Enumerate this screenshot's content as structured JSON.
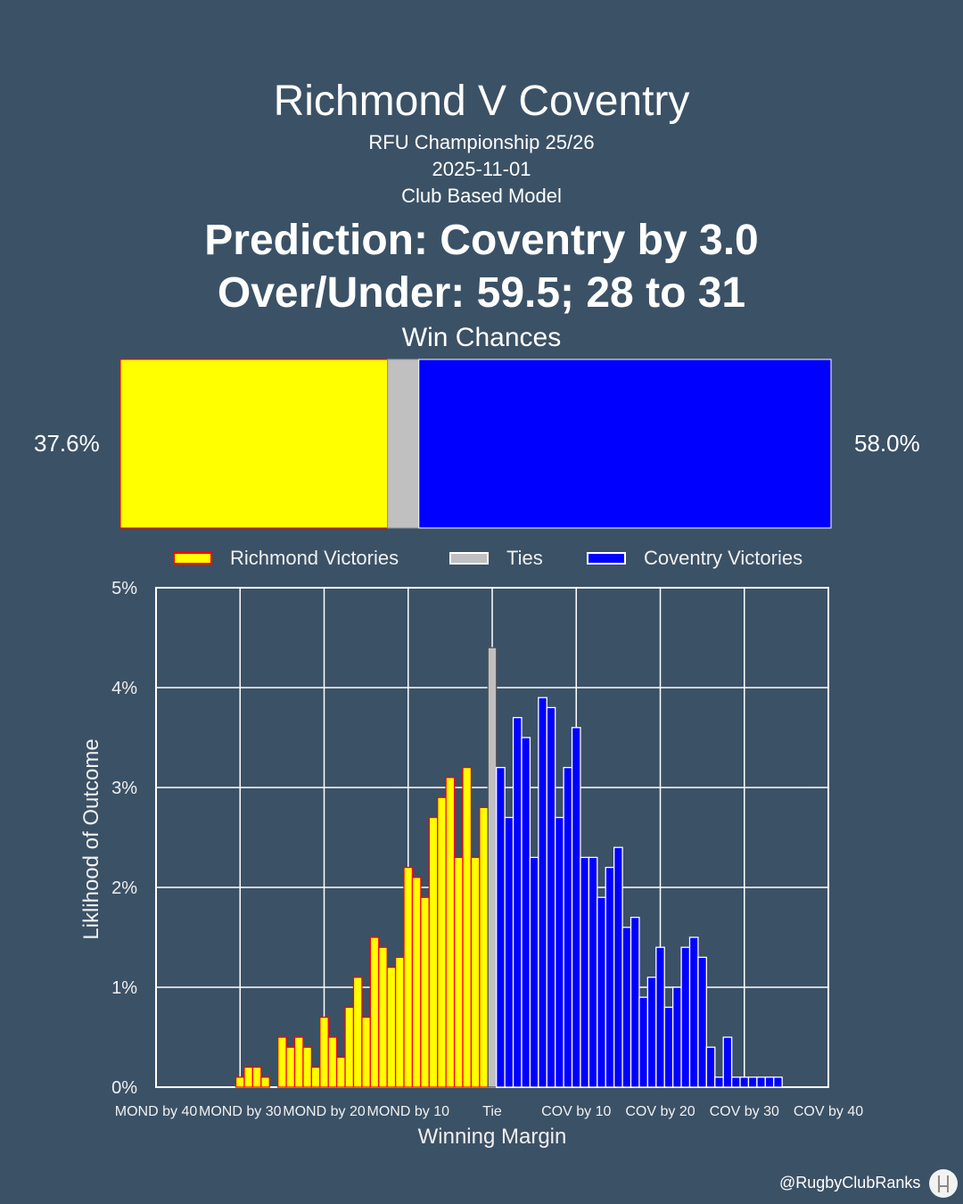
{
  "header": {
    "title": "Richmond V Coventry",
    "competition": "RFU Championship 25/26",
    "date": "2025-11-01",
    "model": "Club Based Model",
    "prediction": "Prediction: Coventry by 3.0",
    "over_under": "Over/Under: 59.5; 28 to 31"
  },
  "win_chances": {
    "title": "Win Chances",
    "home_pct": 37.6,
    "tie_pct": 4.4,
    "away_pct": 58.0,
    "home_label": "37.6%",
    "away_label": "58.0%"
  },
  "colors": {
    "background": "#3b5166",
    "home": "#ffff00",
    "home_edge": "#ff0000",
    "tie": "#c0c0c0",
    "away": "#0000ff",
    "away_edge": "#ffffff"
  },
  "legend": [
    {
      "label": "Richmond Victories",
      "color": "#ffff00",
      "edge": "#ff0000"
    },
    {
      "label": "Ties",
      "color": "#c0c0c0",
      "edge": "#ffffff"
    },
    {
      "label": "Coventry Victories",
      "color": "#0000ff",
      "edge": "#ffffff"
    }
  ],
  "chart_data": {
    "type": "bar",
    "xlabel": "Winning Margin",
    "ylabel": "Liklihood of Outcome",
    "xlim": [
      -40,
      40
    ],
    "ylim": [
      0,
      5
    ],
    "grid": true,
    "legend_position": "top",
    "xticks": [
      {
        "value": -40,
        "label": "MOND by 40"
      },
      {
        "value": -30,
        "label": "MOND by 30"
      },
      {
        "value": -20,
        "label": "MOND by 20"
      },
      {
        "value": -10,
        "label": "MOND by 10"
      },
      {
        "value": 0,
        "label": "Tie"
      },
      {
        "value": 10,
        "label": "COV by 10"
      },
      {
        "value": 20,
        "label": "COV by 20"
      },
      {
        "value": 30,
        "label": "COV by 30"
      },
      {
        "value": 40,
        "label": "COV by 40"
      }
    ],
    "yticks": [
      {
        "value": 0,
        "label": "0%"
      },
      {
        "value": 1,
        "label": "1%"
      },
      {
        "value": 2,
        "label": "2%"
      },
      {
        "value": 3,
        "label": "3%"
      },
      {
        "value": 4,
        "label": "4%"
      },
      {
        "value": 5,
        "label": "5%"
      }
    ],
    "series": [
      {
        "name": "Richmond Victories",
        "x": [
          -30,
          -29,
          -28,
          -27,
          -26,
          -25,
          -24,
          -23,
          -22,
          -21,
          -20,
          -19,
          -18,
          -17,
          -16,
          -15,
          -14,
          -13,
          -12,
          -11,
          -10,
          -9,
          -8,
          -7,
          -6,
          -5,
          -4,
          -3,
          -2,
          -1
        ],
        "values": [
          0.1,
          0.2,
          0.2,
          0.1,
          0.0,
          0.5,
          0.4,
          0.5,
          0.4,
          0.2,
          0.7,
          0.5,
          0.3,
          0.8,
          1.1,
          0.7,
          1.5,
          1.4,
          1.2,
          1.3,
          2.2,
          2.1,
          1.9,
          2.7,
          2.9,
          3.1,
          2.3,
          3.2,
          2.3,
          2.8
        ]
      },
      {
        "name": "Ties",
        "x": [
          0
        ],
        "values": [
          4.4
        ]
      },
      {
        "name": "Coventry Victories",
        "x": [
          1,
          2,
          3,
          4,
          5,
          6,
          7,
          8,
          9,
          10,
          11,
          12,
          13,
          14,
          15,
          16,
          17,
          18,
          19,
          20,
          21,
          22,
          23,
          24,
          25,
          26,
          27,
          28,
          29,
          30,
          31,
          32,
          33,
          34,
          35
        ],
        "values": [
          3.2,
          2.7,
          3.7,
          3.5,
          2.3,
          3.9,
          3.8,
          2.7,
          3.2,
          3.6,
          2.3,
          2.3,
          1.9,
          2.2,
          2.4,
          1.6,
          1.7,
          0.9,
          1.1,
          1.4,
          0.8,
          1.0,
          1.4,
          1.5,
          1.3,
          0.4,
          0.1,
          0.5,
          0.1,
          0.1,
          0.1,
          0.1,
          0.1,
          0.1,
          0.0
        ]
      }
    ]
  },
  "footer": {
    "handle": "@RugbyClubRanks",
    "logo_icon": "rugby-posts-logo-icon"
  }
}
